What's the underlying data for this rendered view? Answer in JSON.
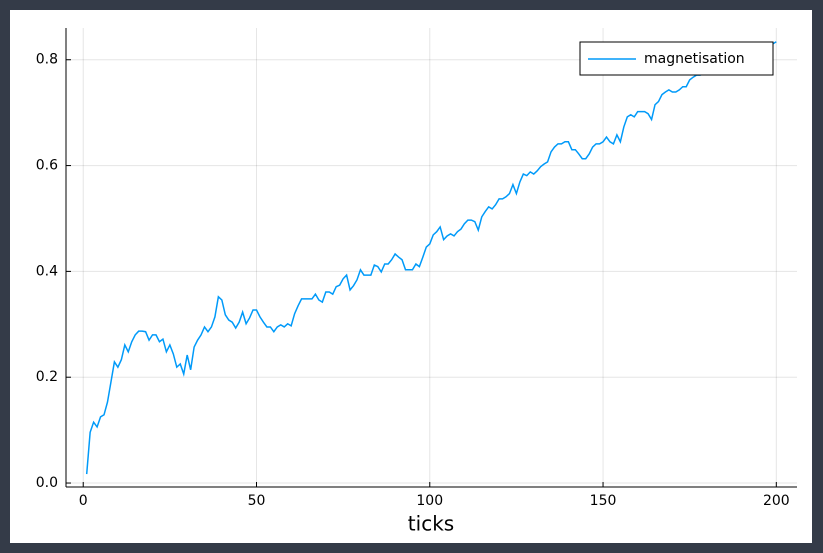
{
  "chart_data": {
    "type": "line",
    "xlabel": "ticks",
    "x": [
      1,
      2,
      3,
      4,
      5,
      6,
      7,
      8,
      9,
      10,
      11,
      12,
      13,
      14,
      15,
      16,
      17,
      18,
      19,
      20,
      21,
      22,
      23,
      24,
      25,
      26,
      27,
      28,
      29,
      30,
      31,
      32,
      33,
      34,
      35,
      36,
      37,
      38,
      39,
      40,
      41,
      42,
      43,
      44,
      45,
      46,
      47,
      48,
      49,
      50,
      51,
      52,
      53,
      54,
      55,
      56,
      57,
      58,
      59,
      60,
      61,
      62,
      63,
      64,
      65,
      66,
      67,
      68,
      69,
      70,
      71,
      72,
      73,
      74,
      75,
      76,
      77,
      78,
      79,
      80,
      81,
      82,
      83,
      84,
      85,
      86,
      87,
      88,
      89,
      90,
      91,
      92,
      93,
      94,
      95,
      96,
      97,
      98,
      99,
      100,
      101,
      102,
      103,
      104,
      105,
      106,
      107,
      108,
      109,
      110,
      111,
      112,
      113,
      114,
      115,
      116,
      117,
      118,
      119,
      120,
      121,
      122,
      123,
      124,
      125,
      126,
      127,
      128,
      129,
      130,
      131,
      132,
      133,
      134,
      135,
      136,
      137,
      138,
      139,
      140,
      141,
      142,
      143,
      144,
      145,
      146,
      147,
      148,
      149,
      150,
      151,
      152,
      153,
      154,
      155,
      156,
      157,
      158,
      159,
      160,
      161,
      162,
      163,
      164,
      165,
      166,
      167,
      168,
      169,
      170,
      171,
      172,
      173,
      174,
      175,
      176,
      177,
      178,
      179,
      180,
      181,
      182,
      183,
      184,
      185,
      186,
      187,
      188,
      189,
      190,
      191,
      192,
      193,
      194,
      195,
      196,
      197,
      198,
      199,
      200
    ],
    "series": [
      {
        "name": "magnetisation",
        "color": "#009af9",
        "values": [
          0.017,
          0.096,
          0.115,
          0.106,
          0.125,
          0.129,
          0.153,
          0.191,
          0.229,
          0.219,
          0.233,
          0.261,
          0.248,
          0.267,
          0.28,
          0.287,
          0.287,
          0.286,
          0.27,
          0.28,
          0.28,
          0.267,
          0.272,
          0.248,
          0.261,
          0.244,
          0.219,
          0.225,
          0.206,
          0.242,
          0.214,
          0.257,
          0.27,
          0.28,
          0.295,
          0.286,
          0.295,
          0.314,
          0.352,
          0.346,
          0.318,
          0.308,
          0.304,
          0.293,
          0.304,
          0.323,
          0.301,
          0.312,
          0.327,
          0.327,
          0.314,
          0.304,
          0.295,
          0.295,
          0.286,
          0.295,
          0.299,
          0.295,
          0.301,
          0.297,
          0.32,
          0.335,
          0.348,
          0.348,
          0.348,
          0.348,
          0.357,
          0.346,
          0.342,
          0.361,
          0.361,
          0.357,
          0.371,
          0.374,
          0.386,
          0.393,
          0.365,
          0.373,
          0.384,
          0.403,
          0.393,
          0.393,
          0.393,
          0.412,
          0.409,
          0.399,
          0.414,
          0.414,
          0.422,
          0.433,
          0.427,
          0.422,
          0.403,
          0.403,
          0.403,
          0.414,
          0.409,
          0.427,
          0.446,
          0.452,
          0.469,
          0.475,
          0.484,
          0.46,
          0.467,
          0.471,
          0.467,
          0.475,
          0.48,
          0.49,
          0.497,
          0.497,
          0.494,
          0.478,
          0.503,
          0.513,
          0.522,
          0.518,
          0.526,
          0.537,
          0.537,
          0.541,
          0.547,
          0.564,
          0.547,
          0.569,
          0.584,
          0.581,
          0.588,
          0.584,
          0.59,
          0.598,
          0.603,
          0.607,
          0.626,
          0.635,
          0.641,
          0.641,
          0.645,
          0.645,
          0.63,
          0.63,
          0.622,
          0.613,
          0.613,
          0.622,
          0.635,
          0.641,
          0.641,
          0.645,
          0.654,
          0.645,
          0.641,
          0.658,
          0.645,
          0.673,
          0.692,
          0.696,
          0.692,
          0.702,
          0.702,
          0.702,
          0.698,
          0.687,
          0.715,
          0.721,
          0.734,
          0.739,
          0.743,
          0.739,
          0.739,
          0.743,
          0.749,
          0.749,
          0.762,
          0.767,
          0.771,
          0.771,
          0.773,
          0.781,
          0.785,
          0.789,
          0.79,
          0.796,
          0.8,
          0.802,
          0.804,
          0.806,
          0.809,
          0.811,
          0.813,
          0.815,
          0.815,
          0.817,
          0.821,
          0.825,
          0.823,
          0.826,
          0.83,
          0.834
        ]
      }
    ],
    "xlim": [
      -4.97,
      205.97
    ],
    "xticks": [
      0,
      50,
      100,
      150,
      200
    ],
    "ylim": [
      -0.0075,
      0.86
    ],
    "yticks": [
      {
        "value": 0,
        "label": "0.0"
      },
      0.2,
      0.4,
      0.6,
      0.8
    ],
    "grid": true,
    "legend": "top-right"
  }
}
